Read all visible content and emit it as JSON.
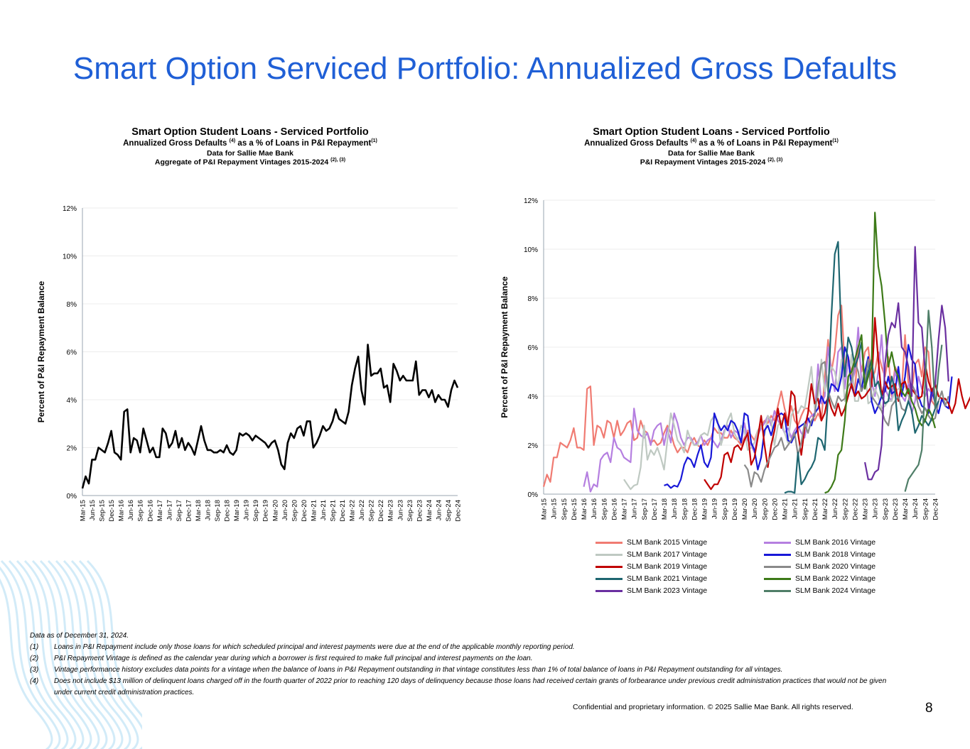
{
  "page": {
    "title": "Smart Option Serviced Portfolio: Annualized Gross Defaults",
    "page_number": "8",
    "confidential": "Confidential and proprietary information. © 2025 Sallie Mae Bank. All rights reserved."
  },
  "footnotes": {
    "data_as_of": "Data as of December 31, 2024.",
    "notes": [
      {
        "num": "(1)",
        "text": "Loans in P&I Repayment include only those loans for which scheduled principal and interest payments were due at the end of the applicable monthly reporting period."
      },
      {
        "num": "(2)",
        "text": "P&I Repayment Vintage is defined as the calendar year during which a borrower is first required to make full principal and interest payments on the loan."
      },
      {
        "num": "(3)",
        "text": "Vintage performance history excludes data points for a vintage when the balance of loans in P&I Repayment outstanding in that vintage constitutes less than 1% of total balance of loans in P&I Repayment outstanding for all vintages."
      },
      {
        "num": "(4)",
        "text": "Does not include $13 million of delinquent loans charged off in the fourth quarter of 2022 prior to reaching 120 days of delinquency because those loans had received certain grants of forbearance under previous credit administration practices that would not be given under current credit administration practices."
      }
    ]
  },
  "chart_data": [
    {
      "type": "line",
      "title": "Smart Option Student Loans - Serviced Portfolio",
      "subtitle_main": "Annualized Gross Defaults",
      "subtitle_sup1": "(4)",
      "subtitle_mid": "as a % of Loans in P&I Repayment",
      "subtitle_sup2": "(1)",
      "line3": "Data for Sallie Mae Bank",
      "line4": "Aggregate of P&I Repayment Vintages 2015-2024",
      "line4_sup": "(2), (3)",
      "ylabel": "Percent of P&I Repayment  Balance",
      "ylim": [
        0,
        12
      ],
      "yticks": [
        "0%",
        "2%",
        "4%",
        "6%",
        "8%",
        "10%",
        "12%"
      ],
      "x_tick_labels": [
        "Mar-15",
        "Jun-15",
        "Sep-15",
        "Dec-15",
        "Mar-16",
        "Jun-16",
        "Sep-16",
        "Dec-16",
        "Mar-17",
        "Jun-17",
        "Sep-17",
        "Dec-17",
        "Mar-18",
        "Jun-18",
        "Sep-18",
        "Dec-18",
        "Mar-19",
        "Jun-19",
        "Sep-19",
        "Dec-19",
        "Mar-20",
        "Jun-20",
        "Sep-20",
        "Dec-20",
        "Mar-21",
        "Jun-21",
        "Sep-21",
        "Dec-21",
        "Mar-22",
        "Jun-22",
        "Sep-22",
        "Dec-22",
        "Mar-23",
        "Jun-23",
        "Sep-23",
        "Dec-23",
        "Mar-24",
        "Jun-24",
        "Sep-24",
        "Dec-24"
      ],
      "series": [
        {
          "name": "Aggregate",
          "color": "#000000",
          "values": [
            0.3,
            0.8,
            0.5,
            1.5,
            1.5,
            2.0,
            1.9,
            1.8,
            2.2,
            2.7,
            1.8,
            1.7,
            1.5,
            3.5,
            3.6,
            1.8,
            2.4,
            2.3,
            1.8,
            2.8,
            2.3,
            1.8,
            2.0,
            1.6,
            1.6,
            2.8,
            2.6,
            2.0,
            2.2,
            2.7,
            2.0,
            2.4,
            1.9,
            2.2,
            2.0,
            1.7,
            2.3,
            2.9,
            2.3,
            1.9,
            1.9,
            1.8,
            1.8,
            1.9,
            1.8,
            2.1,
            1.8,
            1.7,
            1.9,
            2.6,
            2.5,
            2.6,
            2.5,
            2.3,
            2.5,
            2.4,
            2.3,
            2.2,
            2.0,
            2.2,
            2.3,
            1.9,
            1.3,
            1.1,
            2.2,
            2.6,
            2.4,
            2.8,
            2.9,
            2.5,
            3.1,
            3.1,
            2.0,
            2.2,
            2.5,
            2.9,
            2.7,
            2.8,
            3.1,
            3.6,
            3.2,
            3.1,
            3.0,
            3.5,
            4.6,
            5.3,
            5.8,
            4.4,
            3.8,
            6.3,
            5.0,
            5.1,
            5.1,
            5.3,
            4.5,
            4.6,
            3.9,
            5.5,
            5.2,
            4.8,
            5.0,
            4.8,
            4.8,
            4.8,
            5.6,
            4.2,
            4.4,
            4.4,
            4.1,
            4.4,
            3.9,
            4.2,
            4.0,
            4.0,
            3.7,
            4.4,
            4.8,
            4.5
          ]
        }
      ]
    },
    {
      "type": "line",
      "title": "Smart Option Student Loans - Serviced Portfolio",
      "subtitle_main": "Annualized Gross Defaults",
      "subtitle_sup1": "(4)",
      "subtitle_mid": "as a % of Loans in P&I Repayment",
      "subtitle_sup2": "(1)",
      "line3": "Data for Sallie Mae Bank",
      "line4": "P&I Repayment Vintages 2015-2024",
      "line4_sup": "(2), (3)",
      "ylabel": "Percent of P&I Repayment  Balance",
      "ylim": [
        0,
        12
      ],
      "yticks": [
        "0%",
        "2%",
        "4%",
        "6%",
        "8%",
        "10%",
        "12%"
      ],
      "x_tick_labels": [
        "Mar-15",
        "Jun-15",
        "Sep-15",
        "Dec-15",
        "Mar-16",
        "Jun-16",
        "Sep-16",
        "Dec-16",
        "Mar-17",
        "Jun-17",
        "Sep-17",
        "Dec-17",
        "Mar-18",
        "Jun-18",
        "Sep-18",
        "Dec-18",
        "Mar-19",
        "Jun-19",
        "Sep-19",
        "Dec-19",
        "Mar-20",
        "Jun-20",
        "Sep-20",
        "Dec-20",
        "Mar-21",
        "Jun-21",
        "Sep-21",
        "Dec-21",
        "Mar-22",
        "Jun-22",
        "Sep-22",
        "Dec-22",
        "Mar-23",
        "Jun-23",
        "Sep-23",
        "Dec-23",
        "Mar-24",
        "Jun-24",
        "Sep-24",
        "Dec-24"
      ],
      "series": [
        {
          "name": "SLM Bank 2015 Vintage",
          "color": "#f07b72",
          "start_index": 0,
          "values": [
            0.3,
            0.8,
            0.5,
            1.5,
            1.5,
            2.1,
            2.0,
            1.9,
            2.2,
            2.7,
            1.9,
            1.9,
            1.8,
            4.3,
            4.4,
            2.0,
            2.8,
            2.7,
            2.3,
            3.0,
            2.9,
            2.3,
            3.0,
            2.4,
            2.6,
            2.9,
            3.0,
            2.2,
            2.3,
            3.0,
            2.6,
            2.5,
            2.1,
            2.2,
            2.0,
            2.1,
            2.5,
            2.8,
            2.5,
            2.0,
            1.7,
            1.9,
            1.9,
            1.7,
            2.1,
            2.3,
            2.0,
            1.9,
            2.2,
            2.0,
            2.3,
            2.7,
            2.5,
            2.5,
            2.3,
            2.3,
            2.6,
            2.3,
            2.2,
            2.0,
            2.3,
            2.6,
            2.4,
            2.2,
            2.6,
            2.8,
            3.0,
            2.9,
            3.2,
            3.0,
            3.6,
            4.2,
            3.5,
            3.0,
            3.6,
            3.0,
            2.8,
            3.2,
            3.5,
            3.5,
            3.3,
            3.0,
            3.3,
            3.0,
            4.8,
            6.3,
            5.0,
            5.8,
            7.3,
            7.7,
            5.2,
            5.6,
            5.0,
            4.2,
            6.0,
            5.0,
            5.8,
            6.0,
            4.7,
            5.0,
            5.8,
            5.2,
            4.8,
            5.6,
            4.0,
            5.2,
            4.9,
            4.2,
            6.5,
            4.5,
            4.2,
            5.3,
            5.5,
            4.8,
            6.0,
            5.8,
            3.8,
            3.6
          ]
        },
        {
          "name": "SLM Bank 2016 Vintage",
          "color": "#b57fe0",
          "start_index": 12,
          "values": [
            0.3,
            0.9,
            0.1,
            0.4,
            0.3,
            1.4,
            1.6,
            1.7,
            1.3,
            2.3,
            1.9,
            1.8,
            1.5,
            1.4,
            1.3,
            3.5,
            2.6,
            2.4,
            2.3,
            2.5,
            2.0,
            2.6,
            2.8,
            2.9,
            2.0,
            2.7,
            2.1,
            3.3,
            2.9,
            2.3,
            2.0,
            2.3,
            2.3,
            2.0,
            2.1,
            2.4,
            2.0,
            2.2,
            2.3,
            2.1,
            1.9,
            2.2,
            2.6,
            2.8,
            2.3,
            2.6,
            2.5,
            2.1,
            2.9,
            2.2,
            2.0,
            1.7,
            2.4,
            2.7,
            2.9,
            3.2,
            2.8,
            3.4,
            3.0,
            2.8,
            2.5,
            2.7,
            2.3,
            2.6,
            2.8,
            2.5,
            2.3,
            3.0,
            3.2,
            3.3,
            5.3,
            3.7,
            4.0,
            6.0,
            5.0,
            4.2,
            5.8,
            6.0,
            4.3,
            5.5,
            4.5,
            5.0,
            6.8,
            4.5,
            4.8,
            5.5,
            4.6,
            4.0,
            5.0,
            6.5,
            4.3,
            4.0,
            3.8,
            5.0,
            4.6,
            4.0,
            3.8,
            4.5,
            3.3,
            3.8,
            4.8,
            4.3,
            4.0,
            4.3,
            4.1
          ]
        },
        {
          "name": "SLM Bank 2017 Vintage",
          "color": "#bfc9c2",
          "start_index": 24,
          "values": [
            0.6,
            0.4,
            0.2,
            0.35,
            0.4,
            1.1,
            2.8,
            1.4,
            1.8,
            1.6,
            1.9,
            1.5,
            1.0,
            2.2,
            3.3,
            2.8,
            2.2,
            2.0,
            1.7,
            2.6,
            2.2,
            2.0,
            2.0,
            2.4,
            2.5,
            2.4,
            3.0,
            3.2,
            3.0,
            2.0,
            2.5,
            3.0,
            3.3,
            2.5,
            2.2,
            2.8,
            2.6,
            1.8,
            1.9,
            2.1,
            2.6,
            2.8,
            2.4,
            3.2,
            3.0,
            2.0,
            2.8,
            3.0,
            2.5,
            2.1,
            3.2,
            3.5,
            3.3,
            3.6,
            3.5,
            4.3,
            5.2,
            3.5,
            4.0,
            5.5,
            4.2,
            4.8,
            5.2,
            5.0,
            4.3,
            5.5,
            3.8,
            4.6,
            5.7,
            3.8,
            3.8,
            4.6,
            5.1,
            3.7,
            3.8,
            4.3,
            4.0,
            3.5,
            3.6,
            3.8,
            3.8,
            4.2,
            4.3,
            4.3,
            4.4,
            4.0,
            4.2
          ]
        },
        {
          "name": "SLM Bank 2018 Vintage",
          "color": "#1818d8",
          "start_index": 36,
          "values": [
            0.35,
            0.4,
            0.25,
            0.35,
            0.3,
            0.6,
            1.2,
            1.5,
            1.4,
            1.1,
            1.6,
            2.0,
            1.3,
            1.1,
            1.5,
            3.3,
            2.9,
            2.6,
            2.8,
            2.6,
            3.0,
            2.9,
            2.6,
            2.1,
            3.3,
            3.2,
            2.1,
            1.8,
            1.0,
            1.5,
            2.6,
            2.8,
            2.4,
            2.9,
            3.2,
            3.3,
            3.2,
            2.2,
            2.1,
            2.4,
            2.7,
            2.8,
            2.9,
            3.1,
            2.8,
            3.3,
            3.5,
            4.0,
            3.7,
            3.9,
            4.5,
            4.4,
            4.2,
            4.8,
            6.0,
            5.6,
            4.4,
            4.0,
            4.7,
            4.3,
            5.0,
            5.6,
            3.8,
            3.3,
            3.6,
            4.0,
            4.2,
            4.8,
            4.1,
            4.2,
            5.2,
            4.0,
            4.8,
            6.1,
            5.5,
            5.3,
            4.0,
            3.6,
            3.5,
            3.3,
            4.3,
            3.7,
            3.3,
            3.9,
            3.6,
            3.5,
            4.8
          ]
        },
        {
          "name": "SLM Bank 2019 Vintage",
          "color": "#c00000",
          "start_index": 48,
          "values": [
            0.6,
            0.4,
            0.2,
            0.4,
            0.4,
            0.7,
            1.6,
            1.7,
            1.3,
            1.9,
            2.0,
            1.8,
            2.2,
            2.5,
            1.2,
            1.5,
            2.3,
            3.2,
            2.0,
            1.1,
            2.0,
            2.6,
            3.5,
            2.7,
            3.3,
            2.8,
            4.2,
            4.0,
            2.5,
            1.6,
            2.7,
            3.3,
            4.5,
            3.7,
            3.9,
            3.0,
            3.3,
            4.0,
            3.5,
            3.2,
            3.7,
            3.2,
            3.5,
            4.0,
            4.5,
            4.0,
            4.2,
            3.9,
            4.0,
            4.2,
            4.4,
            7.2,
            5.5,
            4.0,
            4.6,
            4.3,
            4.4,
            4.5,
            3.8,
            4.5,
            4.6,
            4.1,
            4.3,
            4.1,
            3.9,
            4.0,
            5.3,
            4.6,
            4.2,
            4.5,
            4.0,
            3.9,
            3.9,
            3.7,
            3.3,
            3.7,
            4.7,
            4.0,
            3.5,
            3.8,
            4.1,
            3.9,
            3.8
          ]
        },
        {
          "name": "SLM Bank 2020 Vintage",
          "color": "#8a8a8a",
          "start_index": 60,
          "values": [
            1.2,
            1.0,
            0.3,
            0.9,
            0.8,
            0.5,
            1.0,
            1.3,
            1.6,
            1.9,
            2.0,
            2.3,
            1.8,
            2.0,
            2.2,
            2.5,
            1.6,
            2.1,
            2.9,
            2.5,
            3.0,
            3.2,
            4.4,
            5.3,
            5.4,
            4.2,
            3.8,
            3.5,
            4.0,
            3.8,
            3.9,
            4.4,
            4.6,
            5.4,
            5.0,
            4.2,
            4.5,
            5.5,
            4.0,
            3.8,
            3.6,
            3.4,
            3.0,
            2.8,
            3.6,
            3.8,
            4.0,
            3.5,
            3.4,
            3.8,
            4.5,
            4.2,
            3.6,
            3.3,
            3.5,
            3.2,
            3.0,
            3.1,
            3.8,
            4.2,
            3.6,
            4.0
          ]
        },
        {
          "name": "SLM Bank 2021 Vintage",
          "color": "#1e6670",
          "start_index": 72,
          "values": [
            0.05,
            0.1,
            0.1,
            0.05,
            1.7,
            0.4,
            0.6,
            0.9,
            1.1,
            1.4,
            2.3,
            2.2,
            1.8,
            4.0,
            7.3,
            9.8,
            10.3,
            6.3,
            4.8,
            6.4,
            6.0,
            5.2,
            5.6,
            6.2,
            4.3,
            5.0,
            5.5,
            4.4,
            4.6,
            4.0,
            3.7,
            3.8,
            4.8,
            4.2,
            2.6,
            3.0,
            3.3,
            3.8,
            3.4,
            2.5,
            2.8,
            3.2,
            3.0,
            2.8,
            3.1,
            3.5,
            3.8
          ]
        },
        {
          "name": "SLM Bank 2022 Vintage",
          "color": "#3d7a18",
          "start_index": 84,
          "values": [
            0.05,
            0.1,
            0.3,
            0.6,
            1.6,
            1.8,
            3.0,
            4.8,
            5.0,
            5.5,
            6.0,
            6.5,
            4.3,
            4.8,
            5.2,
            11.5,
            9.3,
            8.5,
            7.0,
            5.2,
            5.8,
            5.1,
            4.8,
            4.2,
            4.0,
            4.3,
            3.8,
            3.5,
            3.0,
            2.8,
            3.0,
            3.5,
            3.2,
            2.7
          ]
        },
        {
          "name": "SLM Bank 2023 Vintage",
          "color": "#6a2fa0",
          "start_index": 96,
          "values": [
            1.3,
            0.6,
            0.6,
            0.9,
            1.0,
            2.0,
            5.3,
            6.5,
            7.0,
            6.8,
            7.8,
            6.0,
            5.8,
            5.2,
            4.0,
            10.1,
            7.0,
            6.8,
            5.0,
            3.5,
            4.0,
            4.5,
            6.3,
            7.7,
            6.8,
            4.6
          ]
        },
        {
          "name": "SLM Bank 2024 Vintage",
          "color": "#4f7e68",
          "start_index": 108,
          "values": [
            0.1,
            0.6,
            0.8,
            1.0,
            1.2,
            1.8,
            4.5,
            7.5,
            6.0,
            3.5,
            5.0,
            6.1
          ]
        }
      ]
    }
  ]
}
